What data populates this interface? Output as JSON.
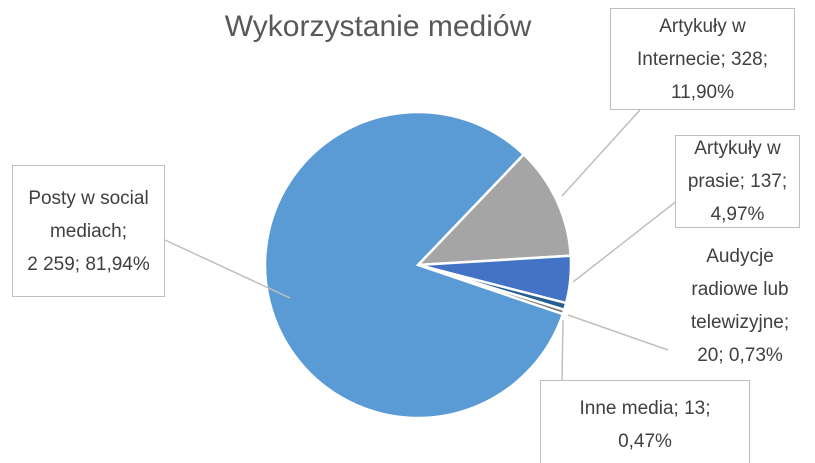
{
  "chart_data": {
    "type": "pie",
    "title": "Wykorzystanie mediów",
    "categories": [
      "Artykuły w Internecie",
      "Artykuły w prasie",
      "Audycje radiowe lub telewizyjne",
      "Inne media",
      "Posty w social mediach"
    ],
    "values": [
      328,
      137,
      20,
      13,
      2259
    ],
    "value_labels": [
      "328",
      "137",
      "20",
      "13",
      "2 259"
    ],
    "percentages": [
      11.9,
      4.97,
      0.73,
      0.47,
      81.94
    ],
    "percentage_labels": [
      "11,90%",
      "4,97%",
      "0,73%",
      "0,47%",
      "81,94%"
    ],
    "separator": ";",
    "colors": [
      "#a5a5a5",
      "#4472c4",
      "#255e91",
      "#7f7f7f",
      "#5b9bd5"
    ]
  }
}
